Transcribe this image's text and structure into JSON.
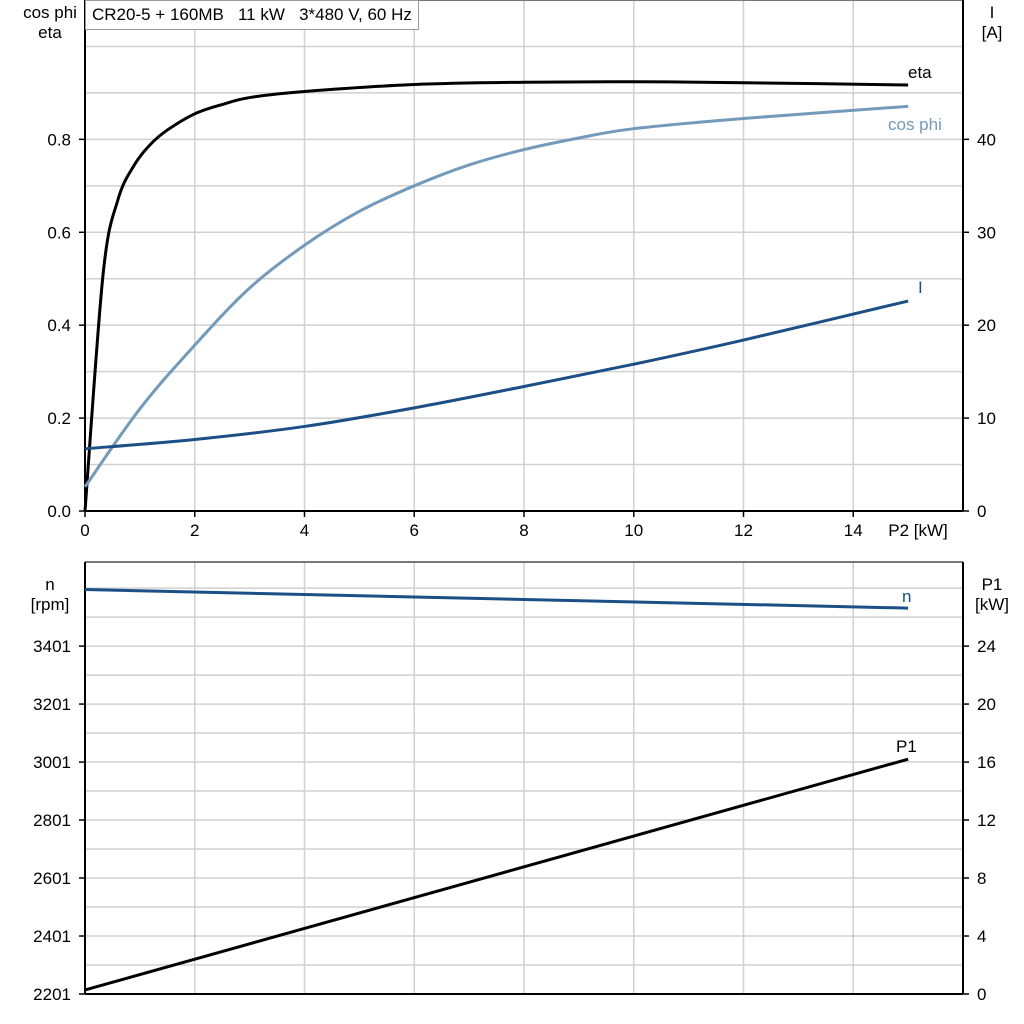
{
  "title": "CR20-5 + 160MB   11 kW   3*480 V, 60 Hz",
  "chart_data": [
    {
      "type": "line",
      "xlabel": "P2 [kW]",
      "xlim": [
        0,
        16
      ],
      "xticks": [
        0,
        2,
        4,
        6,
        8,
        10,
        12,
        14
      ],
      "ylabel_left": [
        "cos phi",
        "eta"
      ],
      "ylim_left": [
        0,
        1.1
      ],
      "yticks_left": [
        "0.0",
        "0.2",
        "0.4",
        "0.6",
        "0.8"
      ],
      "ylabel_right": [
        "I",
        "[A]"
      ],
      "ylim_right": [
        0,
        55
      ],
      "yticks_right": [
        "0",
        "10",
        "20",
        "30",
        "40"
      ],
      "grid": true,
      "series": [
        {
          "name": "eta",
          "axis": "left",
          "color": "#000000",
          "x": [
            0,
            0.33,
            0.6,
            0.9,
            1.2,
            1.5,
            2,
            2.5,
            3,
            4,
            6,
            8,
            10,
            12,
            15
          ],
          "y": [
            0,
            0.51,
            0.67,
            0.745,
            0.79,
            0.82,
            0.855,
            0.875,
            0.89,
            0.903,
            0.918,
            0.923,
            0.924,
            0.922,
            0.917
          ]
        },
        {
          "name": "cos phi",
          "axis": "left",
          "color": "#7399bb",
          "x": [
            0,
            1,
            2,
            3,
            4,
            5,
            6,
            7,
            8,
            9,
            10,
            12,
            15
          ],
          "y": [
            0.052,
            0.22,
            0.357,
            0.48,
            0.572,
            0.645,
            0.7,
            0.745,
            0.778,
            0.803,
            0.823,
            0.845,
            0.871
          ]
        },
        {
          "name": "I",
          "axis": "right",
          "color": "#1c4f85",
          "x": [
            0,
            2,
            4,
            6,
            8,
            10,
            12,
            15
          ],
          "y": [
            6.7,
            7.7,
            9.1,
            11.1,
            13.4,
            15.8,
            18.4,
            22.6
          ]
        }
      ]
    },
    {
      "type": "line",
      "xlim": [
        0,
        16
      ],
      "ylabel_left": [
        "n",
        "[rpm]"
      ],
      "ylim_left": [
        2201,
        3691
      ],
      "yticks_left": [
        "2201",
        "2401",
        "2601",
        "2801",
        "3001",
        "3201",
        "3401"
      ],
      "ylabel_right": [
        "P1",
        "[kW]"
      ],
      "ylim_right": [
        0,
        29.8
      ],
      "yticks_right": [
        "0",
        "4",
        "8",
        "12",
        "16",
        "20",
        "24"
      ],
      "grid": true,
      "series": [
        {
          "name": "n",
          "axis": "left",
          "color": "#1c4f85",
          "x": [
            0,
            15
          ],
          "y": [
            3596,
            3532
          ]
        },
        {
          "name": "P1",
          "axis": "right",
          "color": "#000000",
          "x": [
            0,
            15
          ],
          "y": [
            0.28,
            16.2
          ]
        }
      ]
    }
  ]
}
